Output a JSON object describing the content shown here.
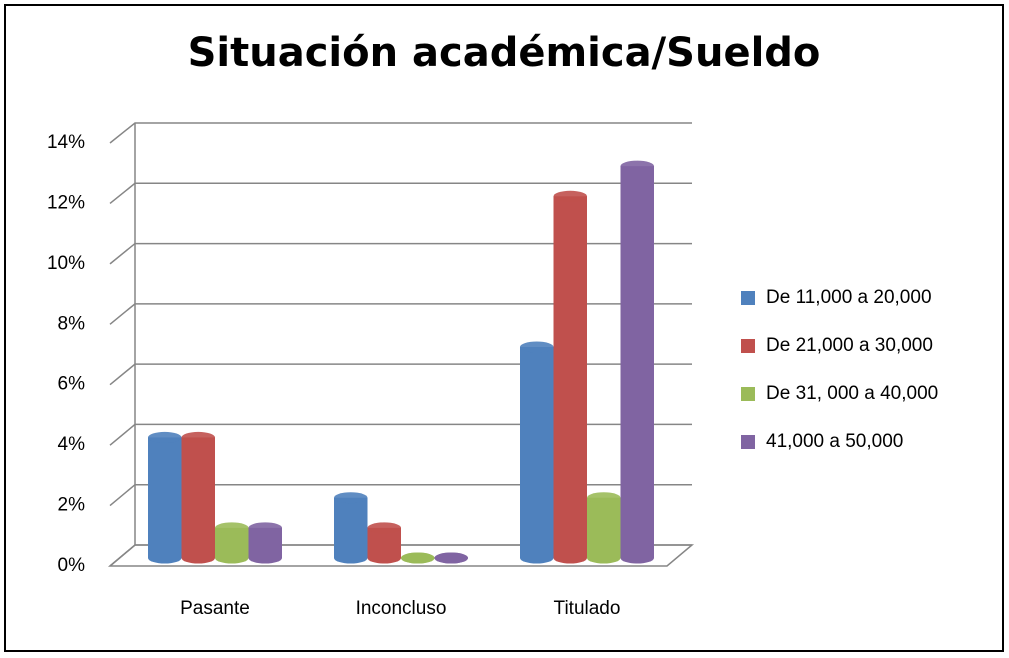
{
  "chart_data": {
    "type": "bar3d",
    "title": "Situación académica/Sueldo",
    "categories": [
      "Pasante",
      "Inconcluso",
      "Titulado"
    ],
    "series": [
      {
        "name": "De 11,000 a 20,000",
        "color": "#4f81bd",
        "values": [
          4,
          2,
          7
        ]
      },
      {
        "name": "De 21,000 a 30,000",
        "color": "#c0504d",
        "values": [
          4,
          1,
          12
        ]
      },
      {
        "name": "De 31, 000 a 40,000",
        "color": "#9bbb59",
        "values": [
          1,
          0,
          2
        ]
      },
      {
        "name": "41,000 a 50,000",
        "color": "#8064a2",
        "values": [
          1,
          0,
          13
        ]
      }
    ],
    "ylim": [
      0,
      14
    ],
    "yticks": [
      {
        "value": 0,
        "label": "0%"
      },
      {
        "value": 2,
        "label": "2%"
      },
      {
        "value": 4,
        "label": "4%"
      },
      {
        "value": 6,
        "label": "6%"
      },
      {
        "value": 8,
        "label": "8%"
      },
      {
        "value": 10,
        "label": "10%"
      },
      {
        "value": 12,
        "label": "12%"
      },
      {
        "value": 14,
        "label": "14%"
      }
    ],
    "grid": true,
    "legend": "right"
  }
}
